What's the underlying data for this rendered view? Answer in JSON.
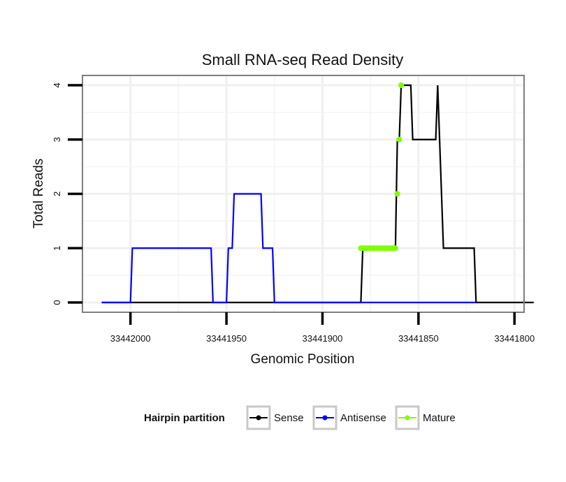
{
  "chart_data": {
    "type": "line",
    "title": "Small RNA-seq Read Density",
    "xlabel": "Genomic Position",
    "ylabel": "Total Reads",
    "x_reversed": true,
    "xlim": [
      33442025,
      33441795
    ],
    "ylim": [
      -0.18,
      4.18
    ],
    "x_ticks": [
      33442000,
      33441950,
      33441900,
      33441850,
      33441800
    ],
    "x_tick_labels": [
      "33442000",
      "33441950",
      "33441900",
      "33441850",
      "33441800"
    ],
    "y_ticks": [
      0,
      1,
      2,
      3,
      4
    ],
    "y_tick_labels": [
      "0",
      "1",
      "2",
      "3",
      "4"
    ],
    "grid": true,
    "legend": {
      "title": "Hairpin partition",
      "position": "bottom",
      "entries": [
        {
          "label": "Sense",
          "color": "#000000"
        },
        {
          "label": "Antisense",
          "color": "#0000ff"
        },
        {
          "label": "Mature",
          "color": "#7fff00"
        }
      ]
    },
    "series": [
      {
        "name": "Sense",
        "color": "#000000",
        "marker": "none",
        "points": [
          [
            33442015,
            0
          ],
          [
            33441880,
            0
          ],
          [
            33441879,
            1
          ],
          [
            33441862,
            1
          ],
          [
            33441861,
            3
          ],
          [
            33441860,
            3
          ],
          [
            33441859,
            4
          ],
          [
            33441854,
            4
          ],
          [
            33441853,
            3
          ],
          [
            33441841,
            3
          ],
          [
            33441840,
            4
          ],
          [
            33441839,
            3
          ],
          [
            33441837,
            1
          ],
          [
            33441821,
            1
          ],
          [
            33441820,
            0
          ],
          [
            33441790,
            0
          ]
        ]
      },
      {
        "name": "Antisense",
        "color": "#0000ff",
        "marker": "none",
        "points": [
          [
            33442015,
            0
          ],
          [
            33442000,
            0
          ],
          [
            33441999,
            1
          ],
          [
            33441958,
            1
          ],
          [
            33441957,
            0
          ],
          [
            33441950,
            0
          ],
          [
            33441949,
            1
          ],
          [
            33441947,
            1
          ],
          [
            33441946,
            2
          ],
          [
            33441932,
            2
          ],
          [
            33441931,
            1
          ],
          [
            33441926,
            1
          ],
          [
            33441925,
            0
          ],
          [
            33441820,
            0
          ]
        ]
      },
      {
        "name": "Mature",
        "color": "#7fff00",
        "marker": "circle",
        "line": false,
        "points": [
          [
            33441880,
            1
          ],
          [
            33441879,
            1
          ],
          [
            33441878,
            1
          ],
          [
            33441877,
            1
          ],
          [
            33441876,
            1
          ],
          [
            33441875,
            1
          ],
          [
            33441874,
            1
          ],
          [
            33441873,
            1
          ],
          [
            33441872,
            1
          ],
          [
            33441871,
            1
          ],
          [
            33441870,
            1
          ],
          [
            33441869,
            1
          ],
          [
            33441868,
            1
          ],
          [
            33441867,
            1
          ],
          [
            33441866,
            1
          ],
          [
            33441865,
            1
          ],
          [
            33441864,
            1
          ],
          [
            33441863,
            1
          ],
          [
            33441862,
            1
          ],
          [
            33441861,
            2
          ],
          [
            33441860,
            3
          ],
          [
            33441859,
            4
          ]
        ]
      }
    ]
  }
}
